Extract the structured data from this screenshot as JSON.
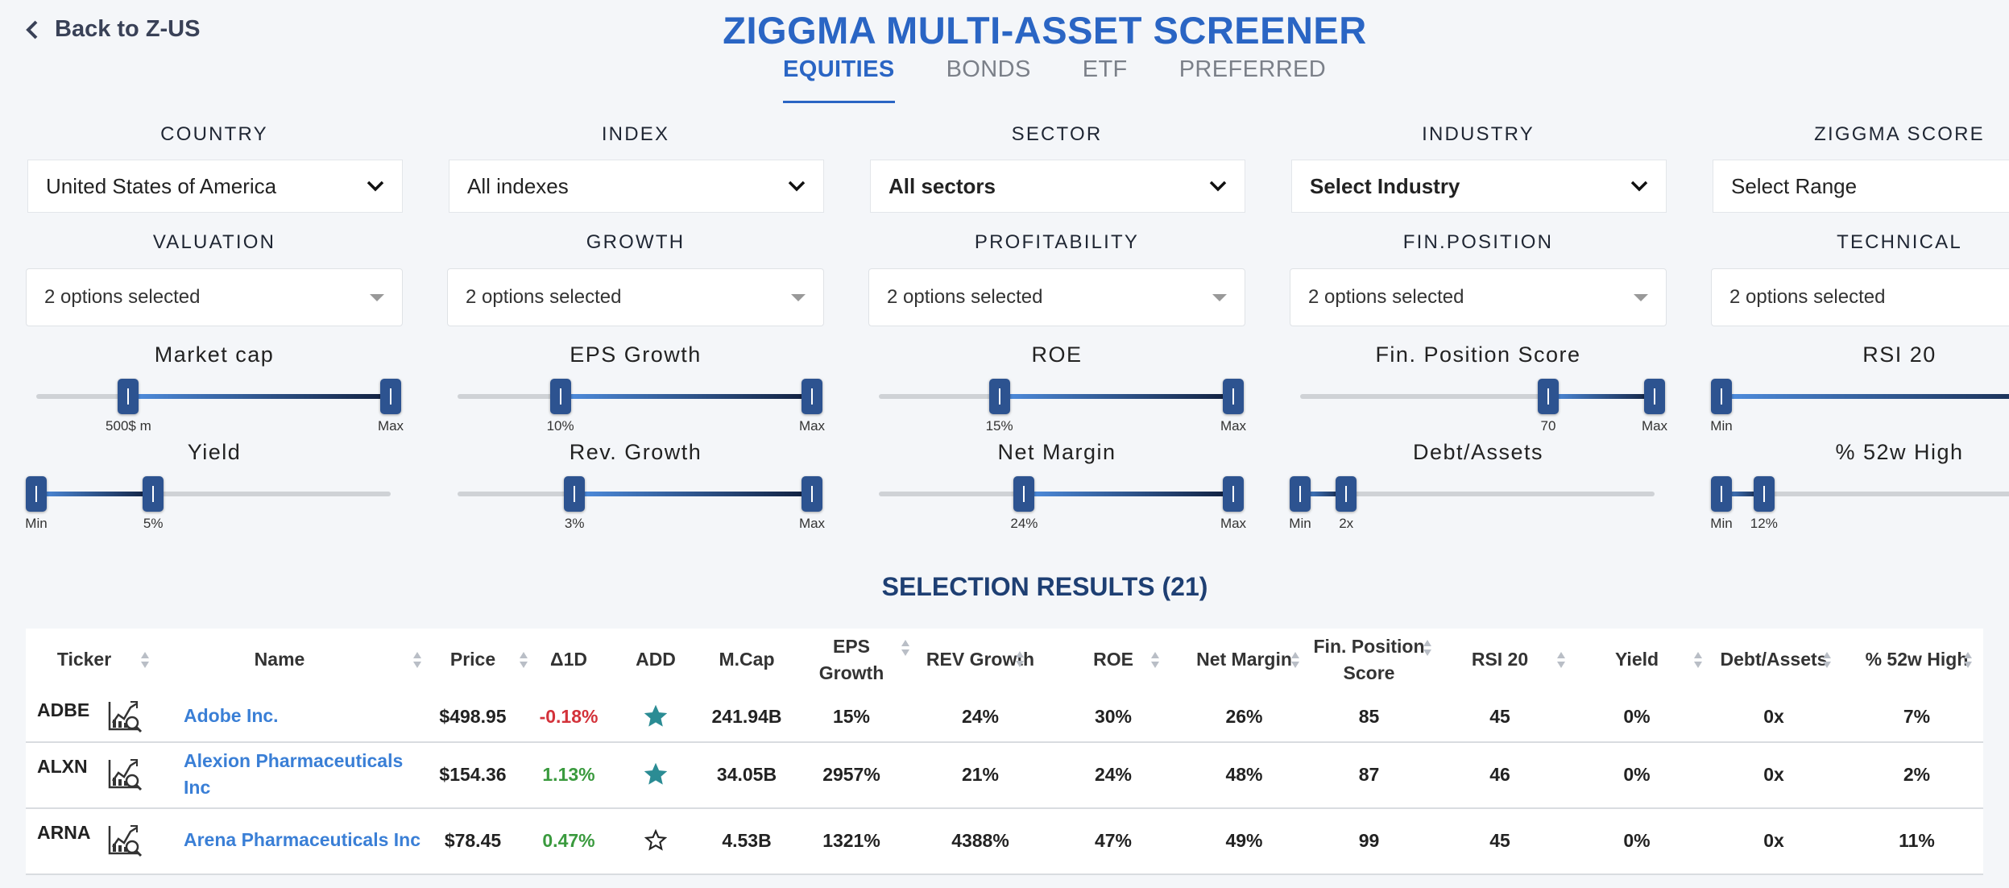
{
  "nav": {
    "back_label": "Back to Z-US"
  },
  "title": "ZIGGMA MULTI-ASSET SCREENER",
  "tabs": [
    "EQUITIES",
    "BONDS",
    "ETF",
    "PREFERRED"
  ],
  "active_tab": "EQUITIES",
  "filters": [
    {
      "label": "COUNTRY",
      "value": "United States of America"
    },
    {
      "label": "INDEX",
      "value": "All indexes"
    },
    {
      "label": "SECTOR",
      "value": "All sectors"
    },
    {
      "label": "INDUSTRY",
      "value": "Select Industry"
    },
    {
      "label": "ZIGGMA SCORE",
      "value": "Select Range"
    }
  ],
  "multi_filters": [
    {
      "label": "VALUATION",
      "value": "2 options selected"
    },
    {
      "label": "GROWTH",
      "value": "2 options selected"
    },
    {
      "label": "PROFITABILITY",
      "value": "2 options selected"
    },
    {
      "label": "FIN.POSITION",
      "value": "2 options selected"
    },
    {
      "label": "TECHNICAL",
      "value": "2 options selected"
    }
  ],
  "sliders": [
    {
      "label": "Market cap",
      "lo": 0.26,
      "hi": 1.0,
      "lo_label": "500$ m",
      "hi_label": "Max"
    },
    {
      "label": "EPS Growth",
      "lo": 0.29,
      "hi": 1.0,
      "lo_label": "10%",
      "hi_label": "Max"
    },
    {
      "label": "ROE",
      "lo": 0.34,
      "hi": 1.0,
      "lo_label": "15%",
      "hi_label": "Max"
    },
    {
      "label": "Fin. Position Score",
      "lo": 0.7,
      "hi": 1.0,
      "lo_label": "70",
      "hi_label": "Max"
    },
    {
      "label": "RSI 20",
      "lo": 0.0,
      "hi": 1.0,
      "lo_label": "Min",
      "hi_label": ""
    },
    {
      "label": "Yield",
      "lo": 0.0,
      "hi": 0.33,
      "lo_label": "Min",
      "hi_label": "5%"
    },
    {
      "label": "Rev. Growth",
      "lo": 0.33,
      "hi": 1.0,
      "lo_label": "3%",
      "hi_label": "Max"
    },
    {
      "label": "Net Margin",
      "lo": 0.41,
      "hi": 1.0,
      "lo_label": "24%",
      "hi_label": "Max"
    },
    {
      "label": "Debt/Assets",
      "lo": 0.0,
      "hi": 0.13,
      "lo_label": "Min",
      "hi_label": "2x"
    },
    {
      "label": "% 52w High",
      "lo": 0.0,
      "hi": 0.12,
      "lo_label": "Min",
      "hi_label": "12%"
    }
  ],
  "results_title": "SELECTION RESULTS (21)",
  "columns": [
    "Ticker",
    "Name",
    "Price",
    "Δ1D",
    "ADD",
    "M.Cap",
    "EPS Growth",
    "REV Growth",
    "ROE",
    "Net Margin",
    "Fin. Position Score",
    "RSI 20",
    "Yield",
    "Debt/Assets",
    "% 52w High"
  ],
  "rows": [
    {
      "ticker": "ADBE",
      "name": "Adobe Inc.",
      "price": "$498.95",
      "d1d": "-0.18%",
      "d1d_sign": "neg",
      "added": true,
      "mcap": "241.94B",
      "eps": "15%",
      "rev": "24%",
      "roe": "30%",
      "net_margin": "26%",
      "fin_score": "85",
      "rsi": "45",
      "yield": "0%",
      "debt_assets": "0x",
      "high52": "7%"
    },
    {
      "ticker": "ALXN",
      "name": "Alexion Pharmaceuticals Inc",
      "price": "$154.36",
      "d1d": "1.13%",
      "d1d_sign": "pos",
      "added": true,
      "mcap": "34.05B",
      "eps": "2957%",
      "rev": "21%",
      "roe": "24%",
      "net_margin": "48%",
      "fin_score": "87",
      "rsi": "46",
      "yield": "0%",
      "debt_assets": "0x",
      "high52": "2%"
    },
    {
      "ticker": "ARNA",
      "name": "Arena Pharmaceuticals Inc",
      "price": "$78.45",
      "d1d": "0.47%",
      "d1d_sign": "pos",
      "added": false,
      "mcap": "4.53B",
      "eps": "1321%",
      "rev": "4388%",
      "roe": "47%",
      "net_margin": "49%",
      "fin_score": "99",
      "rsi": "45",
      "yield": "0%",
      "debt_assets": "0x",
      "high52": "11%"
    }
  ],
  "colors": {
    "accent": "#2a65c4",
    "heading": "#1e3f73",
    "handle": "#2d5390",
    "star_filled": "#2b8c94",
    "negative": "#d3323a",
    "positive": "#3a9a3e"
  },
  "icons": {
    "back": "chevron-left-icon",
    "dropdown": "chevron-down-icon",
    "multi_dropdown": "caret-down-icon",
    "sort": "sort-arrows-icon",
    "chart": "chart-magnifier-icon",
    "add": "star-icon"
  }
}
